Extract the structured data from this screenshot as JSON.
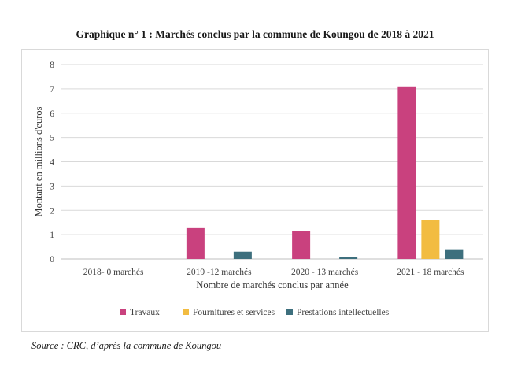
{
  "title": "Graphique n° 1 :  Marchés conclus par la commune de Koungou de 2018 à 2021",
  "source": "Source : CRC, d’après la commune de Koungou",
  "chart_data": {
    "type": "bar",
    "categories": [
      "2018- 0 marchés",
      "2019 -12 marchés",
      "2020 - 13 marchés",
      "2021 - 18 marchés"
    ],
    "series": [
      {
        "name": "Travaux",
        "color": "#c9417e",
        "values": [
          0,
          1.3,
          1.15,
          7.1
        ]
      },
      {
        "name": "Fournitures et services",
        "color": "#f2bc41",
        "values": [
          0,
          0,
          0,
          1.6
        ]
      },
      {
        "name": "Prestations intellectuelles",
        "color": "#3d6f7d",
        "values": [
          0,
          0.3,
          0.08,
          0.4
        ]
      }
    ],
    "xlabel": "Nombre de marchés conclus par année",
    "ylabel": "Montant en millions d'euros",
    "ylim": [
      0,
      8
    ],
    "yticks": [
      "0",
      "1",
      "2",
      "3",
      "4",
      "5",
      "6",
      "7",
      "8"
    ],
    "grid": true,
    "legend_position": "bottom"
  }
}
